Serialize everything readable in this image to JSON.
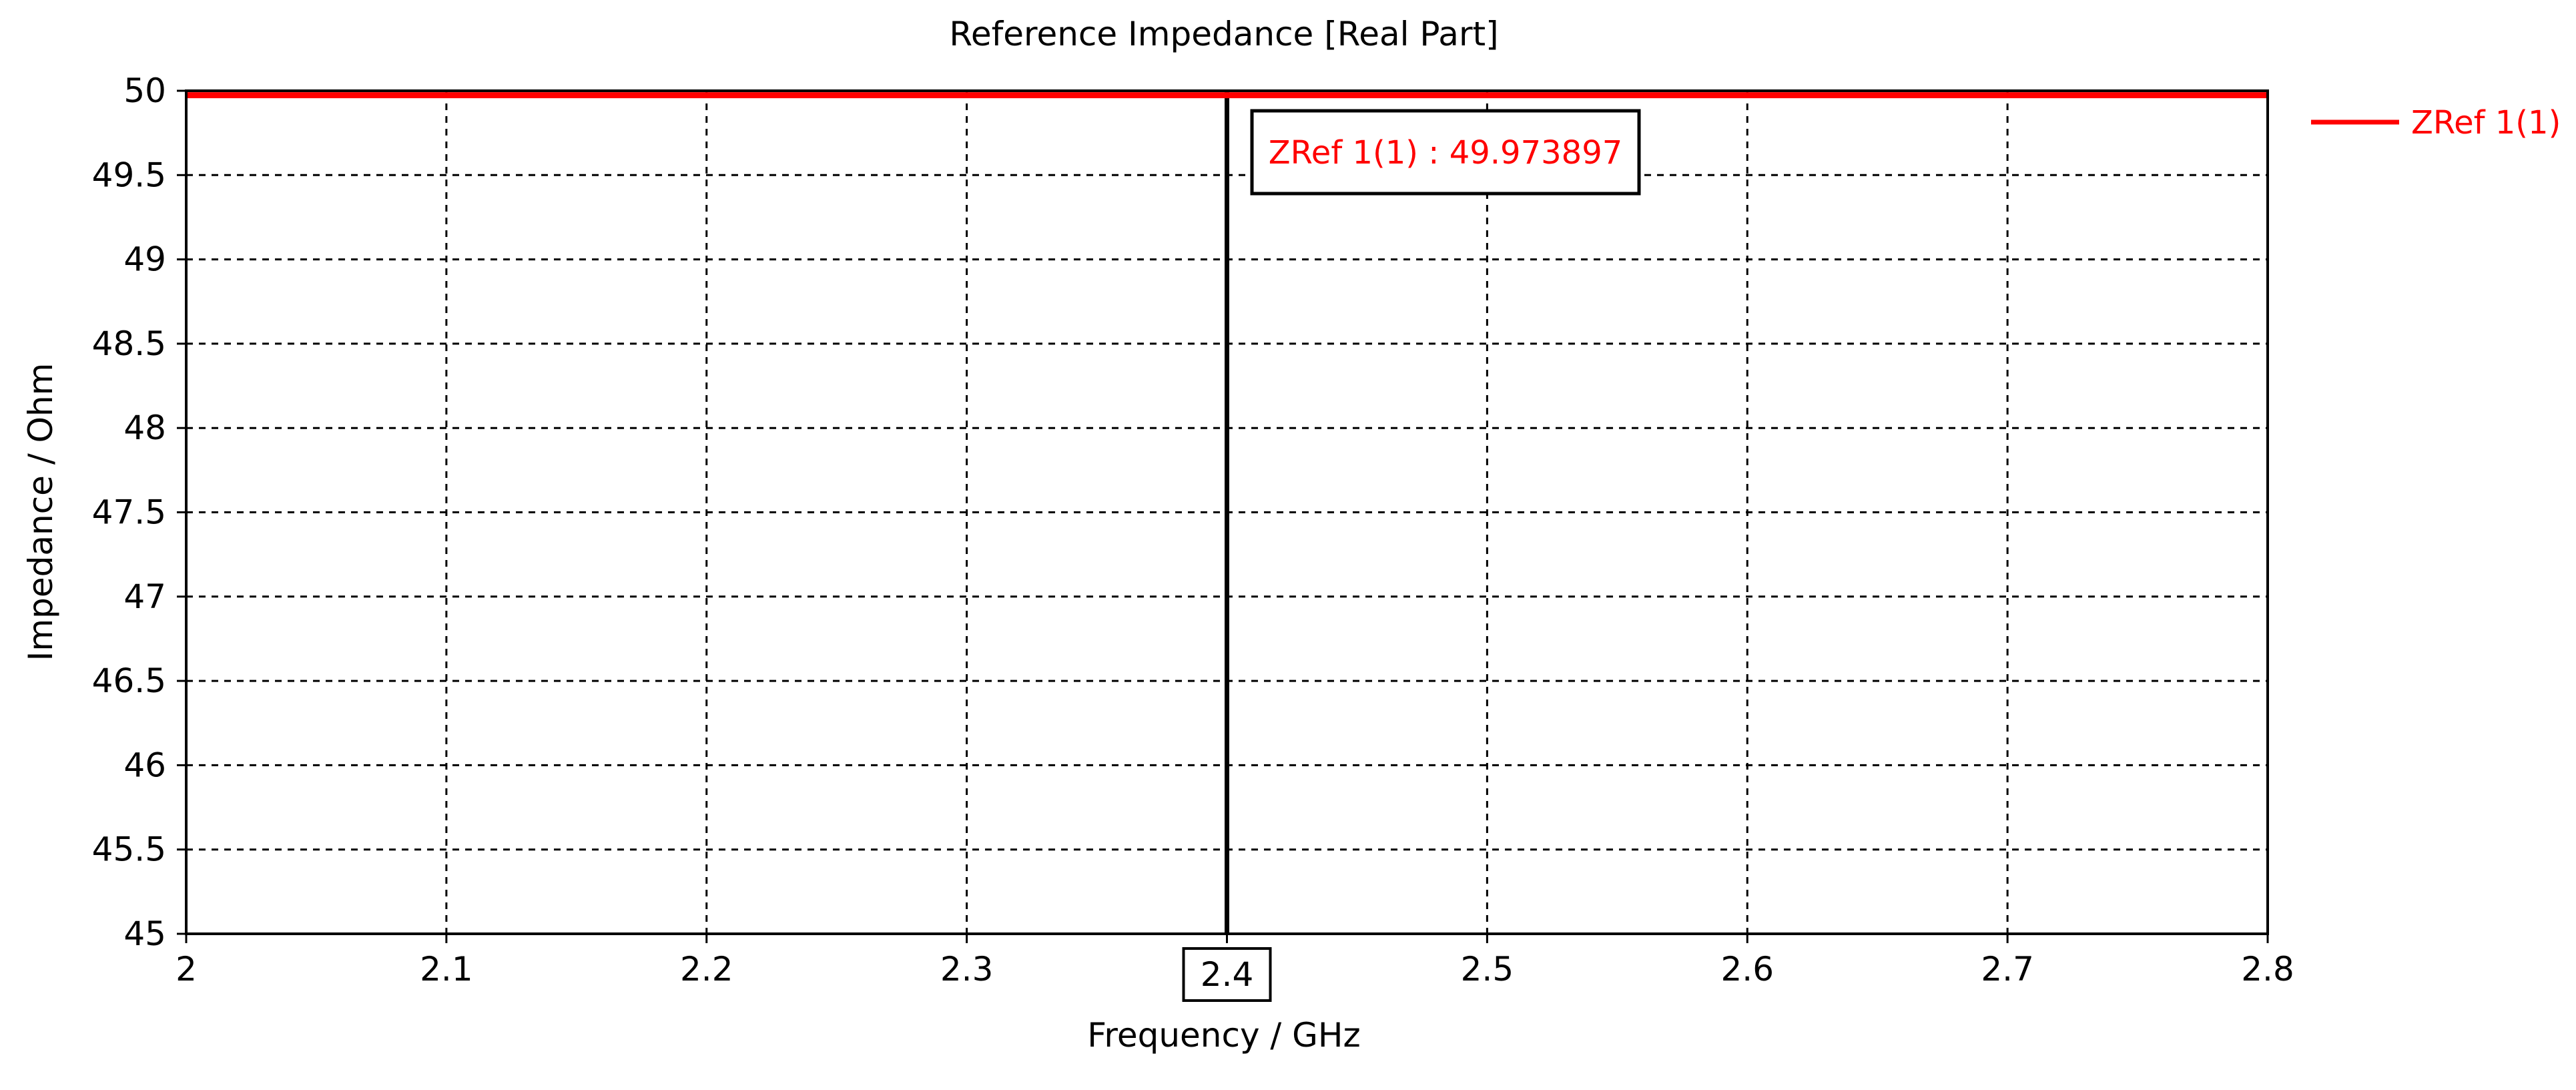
{
  "chart_data": {
    "type": "line",
    "title": "Reference Impedance [Real Part]",
    "xlabel": "Frequency / GHz",
    "ylabel": "Impedance / Ohm",
    "xlim": [
      2,
      2.8
    ],
    "ylim": [
      45,
      50
    ],
    "x_ticks": [
      2,
      2.1,
      2.2,
      2.3,
      2.4,
      2.5,
      2.6,
      2.7,
      2.8
    ],
    "x_tick_labels": [
      "2",
      "2.1",
      "2.2",
      "2.3",
      "2.4",
      "2.5",
      "2.6",
      "2.7",
      "2.8"
    ],
    "y_ticks": [
      45,
      45.5,
      46,
      46.5,
      47,
      47.5,
      48,
      48.5,
      49,
      49.5,
      50
    ],
    "y_tick_labels": [
      "45",
      "45.5",
      "46",
      "46.5",
      "47",
      "47.5",
      "48",
      "48.5",
      "49",
      "49.5",
      "50"
    ],
    "grid": true,
    "grid_style": "dashed",
    "legend_position": "right",
    "series": [
      {
        "name": "ZRef 1(1)",
        "color": "#ff0000",
        "x": [
          2,
          2.1,
          2.2,
          2.3,
          2.4,
          2.5,
          2.6,
          2.7,
          2.8
        ],
        "y": [
          49.9739,
          49.9739,
          49.9739,
          49.9739,
          49.973897,
          49.9739,
          49.9739,
          49.9739,
          49.9739
        ]
      }
    ],
    "marker": {
      "x": 2.4,
      "x_label": "2.4",
      "annotation": "ZRef 1(1) : 49.973897",
      "annotation_color": "#ff0000"
    }
  }
}
